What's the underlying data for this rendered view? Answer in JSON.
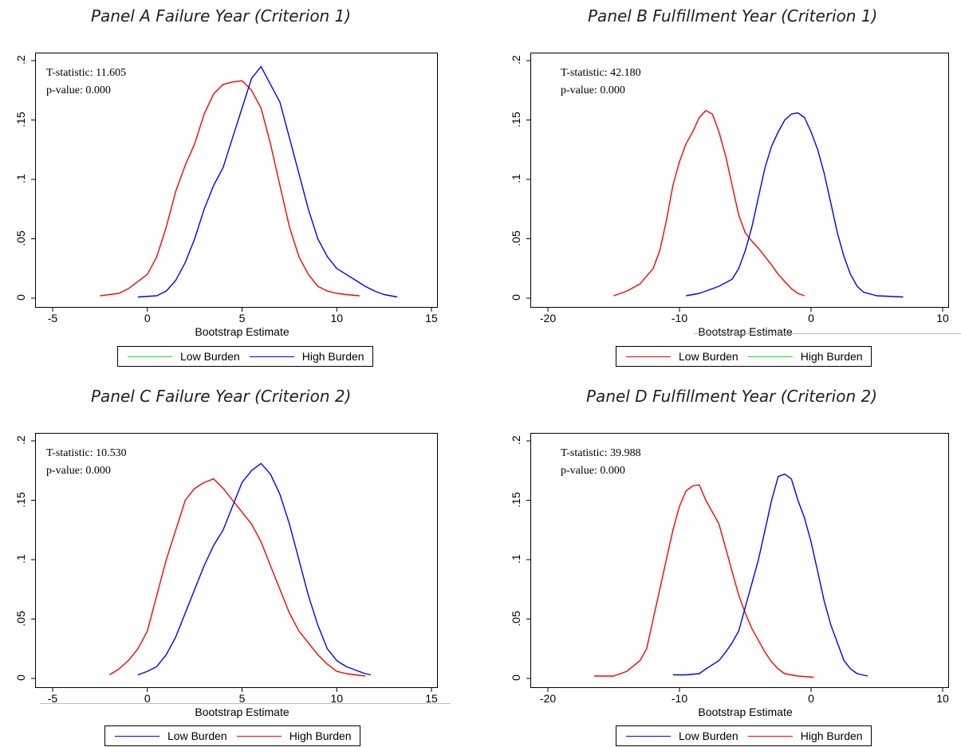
{
  "chart_data": [
    {
      "type": "line",
      "panel": "A",
      "title": "Panel A Failure Year (Criterion 1)",
      "xlabel": "Bootstrap Estimate",
      "ylabel": "",
      "xlim": [
        -5,
        15
      ],
      "ylim": [
        0,
        0.2
      ],
      "xticks": [
        "-5",
        "0",
        "5",
        "10",
        "15"
      ],
      "yticks": [
        "0",
        ".05",
        ".1",
        ".15",
        ".2"
      ],
      "t_statistic": "T-statistic: 11.605",
      "p_value": "p-value: 0.000",
      "legend": [
        {
          "label": "Low Burden",
          "color": "#22dd22"
        },
        {
          "label": "High Burden",
          "color": "#0000ff"
        }
      ],
      "series": [
        {
          "color": "#ff0000",
          "x": [
            -2.5,
            -1.5,
            -1.0,
            -0.5,
            0.0,
            0.5,
            1.0,
            1.5,
            2.0,
            2.5,
            3.0,
            3.5,
            4.0,
            4.5,
            5.0,
            5.5,
            6.0,
            6.5,
            7.0,
            7.5,
            8.0,
            8.5,
            9.0,
            9.5,
            10.0,
            10.5,
            11.2
          ],
          "y": [
            0.002,
            0.004,
            0.008,
            0.014,
            0.02,
            0.035,
            0.06,
            0.09,
            0.112,
            0.13,
            0.155,
            0.172,
            0.18,
            0.182,
            0.183,
            0.175,
            0.16,
            0.13,
            0.095,
            0.06,
            0.035,
            0.02,
            0.01,
            0.006,
            0.004,
            0.003,
            0.002
          ]
        },
        {
          "color": "#0000ff",
          "x": [
            -0.5,
            0.5,
            1.0,
            1.5,
            2.0,
            2.5,
            3.0,
            3.5,
            4.0,
            4.5,
            5.0,
            5.5,
            6.0,
            6.5,
            7.0,
            7.5,
            8.0,
            8.5,
            9.0,
            9.5,
            10.0,
            10.5,
            11.0,
            11.5,
            12.0,
            12.5,
            13.2
          ],
          "y": [
            0.001,
            0.002,
            0.006,
            0.015,
            0.03,
            0.05,
            0.075,
            0.095,
            0.11,
            0.135,
            0.16,
            0.185,
            0.195,
            0.18,
            0.165,
            0.135,
            0.105,
            0.075,
            0.05,
            0.035,
            0.025,
            0.02,
            0.015,
            0.01,
            0.006,
            0.003,
            0.001
          ]
        }
      ]
    },
    {
      "type": "line",
      "panel": "B",
      "title": "Panel B Fulfillment Year (Criterion 1)",
      "xlabel": "Bootstrap Estimate",
      "ylabel": "",
      "xlim": [
        -20,
        10
      ],
      "ylim": [
        0,
        0.2
      ],
      "xticks": [
        "-20",
        "-10",
        "0",
        "10"
      ],
      "yticks": [
        "0",
        ".05",
        ".1",
        ".15",
        ".2"
      ],
      "t_statistic": "T-statistic: 42.180",
      "p_value": "p-value: 0.000",
      "legend": [
        {
          "label": "Low Burden",
          "color": "#ff0000"
        },
        {
          "label": "High Burden",
          "color": "#22dd22"
        }
      ],
      "series": [
        {
          "color": "#ff0000",
          "x": [
            -15.0,
            -14.0,
            -13.0,
            -12.0,
            -11.5,
            -11.0,
            -10.5,
            -10.0,
            -9.5,
            -9.0,
            -8.5,
            -8.0,
            -7.5,
            -7.0,
            -6.5,
            -6.0,
            -5.5,
            -5.0,
            -4.5,
            -4.0,
            -3.5,
            -3.0,
            -2.5,
            -2.0,
            -1.5,
            -1.0,
            -0.5
          ],
          "y": [
            0.002,
            0.006,
            0.012,
            0.025,
            0.04,
            0.065,
            0.095,
            0.115,
            0.13,
            0.14,
            0.152,
            0.158,
            0.155,
            0.14,
            0.12,
            0.095,
            0.07,
            0.055,
            0.048,
            0.042,
            0.035,
            0.028,
            0.02,
            0.014,
            0.008,
            0.004,
            0.002
          ]
        },
        {
          "color": "#0000ff",
          "x": [
            -9.5,
            -8.5,
            -8.0,
            -7.0,
            -6.0,
            -5.5,
            -5.0,
            -4.5,
            -4.0,
            -3.5,
            -3.0,
            -2.5,
            -2.0,
            -1.5,
            -1.0,
            -0.5,
            0.0,
            0.5,
            1.0,
            1.5,
            2.0,
            2.5,
            3.0,
            3.5,
            4.0,
            5.0,
            7.0
          ],
          "y": [
            0.002,
            0.004,
            0.006,
            0.01,
            0.016,
            0.025,
            0.04,
            0.06,
            0.085,
            0.11,
            0.128,
            0.14,
            0.15,
            0.155,
            0.156,
            0.152,
            0.14,
            0.125,
            0.105,
            0.08,
            0.055,
            0.035,
            0.02,
            0.01,
            0.005,
            0.002,
            0.001
          ]
        }
      ]
    },
    {
      "type": "line",
      "panel": "C",
      "title": "Panel C Failure Year (Criterion 2)",
      "xlabel": "Bootstrap Estimate",
      "ylabel": "",
      "xlim": [
        -5,
        15
      ],
      "ylim": [
        0,
        0.2
      ],
      "xticks": [
        "-5",
        "0",
        "5",
        "10",
        "15"
      ],
      "yticks": [
        "0",
        ".05",
        ".1",
        ".15",
        ".2"
      ],
      "t_statistic": "T-statistic: 10.530",
      "p_value": "p-value: 0.000",
      "legend": [
        {
          "label": "Low Burden",
          "color": "#0000ff"
        },
        {
          "label": "High Burden",
          "color": "#ff0000"
        }
      ],
      "series": [
        {
          "color": "#ff0000",
          "x": [
            -2.0,
            -1.5,
            -1.0,
            -0.5,
            0.0,
            0.5,
            1.0,
            1.5,
            2.0,
            2.5,
            3.0,
            3.5,
            4.0,
            4.5,
            5.0,
            5.5,
            6.0,
            6.5,
            7.0,
            7.5,
            8.0,
            8.5,
            9.0,
            9.5,
            10.0,
            10.5,
            11.5
          ],
          "y": [
            0.003,
            0.008,
            0.015,
            0.025,
            0.04,
            0.07,
            0.1,
            0.125,
            0.15,
            0.16,
            0.165,
            0.168,
            0.16,
            0.15,
            0.14,
            0.13,
            0.115,
            0.095,
            0.075,
            0.055,
            0.04,
            0.03,
            0.02,
            0.012,
            0.006,
            0.004,
            0.002
          ]
        },
        {
          "color": "#0000ff",
          "x": [
            -0.5,
            0.0,
            0.5,
            1.0,
            1.5,
            2.0,
            2.5,
            3.0,
            3.5,
            4.0,
            4.5,
            5.0,
            5.5,
            6.0,
            6.5,
            7.0,
            7.5,
            8.0,
            8.5,
            9.0,
            9.5,
            10.0,
            10.5,
            11.0,
            11.5,
            11.8
          ],
          "y": [
            0.003,
            0.006,
            0.01,
            0.02,
            0.035,
            0.055,
            0.075,
            0.095,
            0.112,
            0.125,
            0.145,
            0.165,
            0.175,
            0.181,
            0.172,
            0.155,
            0.13,
            0.1,
            0.07,
            0.045,
            0.025,
            0.015,
            0.01,
            0.007,
            0.004,
            0.003
          ]
        }
      ]
    },
    {
      "type": "line",
      "panel": "D",
      "title": "Panel D Fulfillment Year (Criterion 2)",
      "xlabel": "Bootstrap Estimate",
      "ylabel": "",
      "xlim": [
        -20,
        10
      ],
      "ylim": [
        0,
        0.2
      ],
      "xticks": [
        "-20",
        "-10",
        "0",
        "10"
      ],
      "yticks": [
        "0",
        ".05",
        ".1",
        ".15",
        ".2"
      ],
      "t_statistic": "T-statistic: 39.988",
      "p_value": "p-value: 0.000",
      "legend": [
        {
          "label": "Low Burden",
          "color": "#0000ff"
        },
        {
          "label": "High Burden",
          "color": "#ff0000"
        }
      ],
      "series": [
        {
          "color": "#ff0000",
          "x": [
            -16.5,
            -15.0,
            -14.0,
            -13.0,
            -12.5,
            -12.0,
            -11.5,
            -11.0,
            -10.5,
            -10.0,
            -9.5,
            -9.0,
            -8.5,
            -8.0,
            -7.5,
            -7.0,
            -6.5,
            -6.0,
            -5.5,
            -5.0,
            -4.5,
            -4.0,
            -3.5,
            -3.0,
            -2.5,
            -2.0,
            -1.0,
            0.2
          ],
          "y": [
            0.002,
            0.002,
            0.006,
            0.015,
            0.025,
            0.05,
            0.075,
            0.1,
            0.125,
            0.145,
            0.158,
            0.162,
            0.163,
            0.15,
            0.14,
            0.13,
            0.11,
            0.09,
            0.07,
            0.055,
            0.042,
            0.032,
            0.022,
            0.014,
            0.008,
            0.004,
            0.002,
            0.001
          ]
        },
        {
          "color": "#0000ff",
          "x": [
            -10.5,
            -9.5,
            -8.5,
            -8.0,
            -7.0,
            -6.5,
            -6.0,
            -5.5,
            -5.0,
            -4.5,
            -4.0,
            -3.5,
            -3.0,
            -2.5,
            -2.0,
            -1.5,
            -1.0,
            -0.5,
            0.0,
            0.5,
            1.0,
            1.5,
            2.0,
            2.5,
            3.0,
            3.5,
            4.3
          ],
          "y": [
            0.003,
            0.003,
            0.004,
            0.008,
            0.015,
            0.022,
            0.03,
            0.04,
            0.06,
            0.08,
            0.1,
            0.125,
            0.15,
            0.17,
            0.172,
            0.168,
            0.15,
            0.135,
            0.115,
            0.09,
            0.065,
            0.045,
            0.03,
            0.015,
            0.008,
            0.004,
            0.002
          ]
        }
      ]
    }
  ]
}
